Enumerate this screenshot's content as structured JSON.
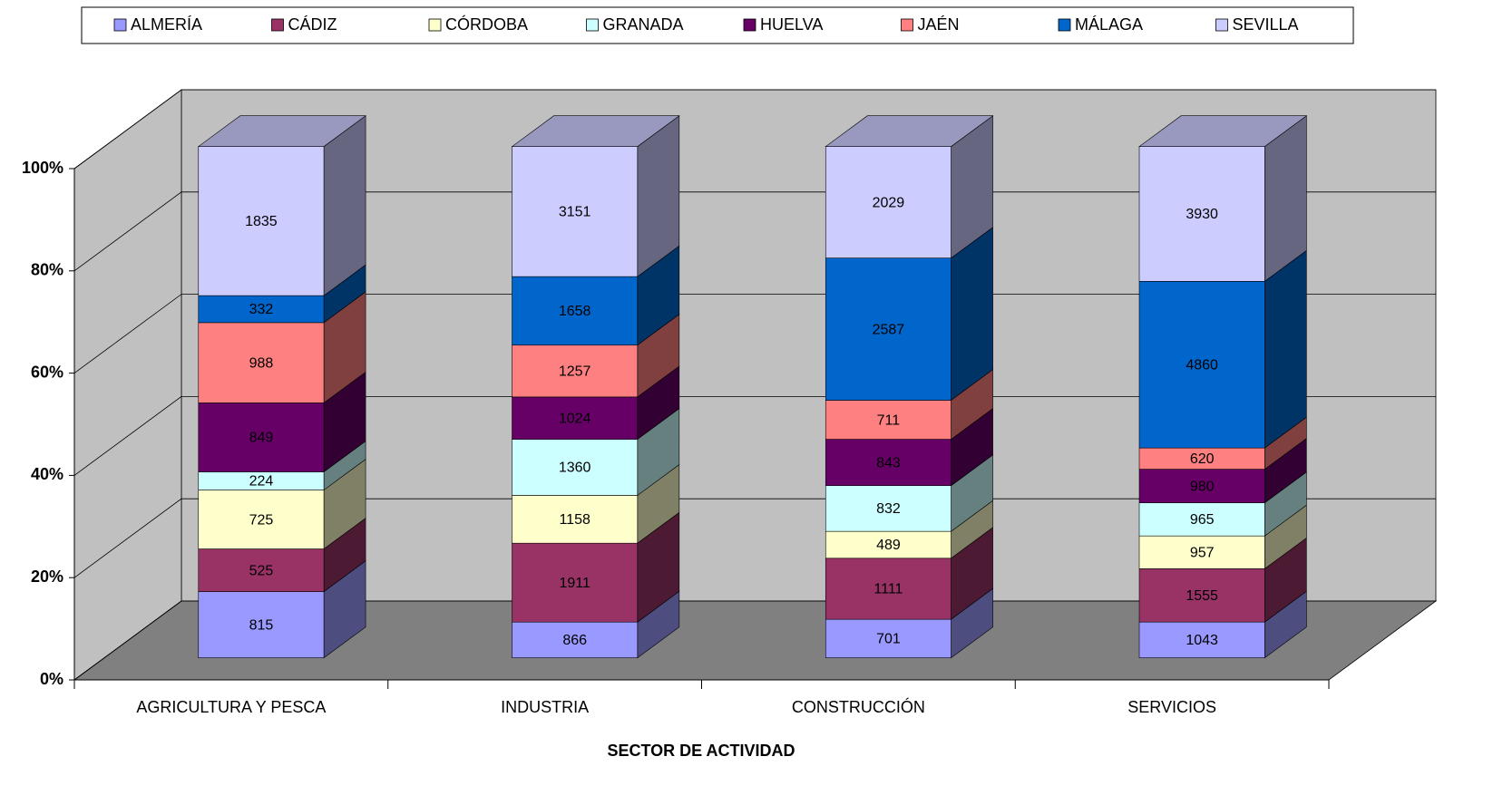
{
  "chart_data": {
    "type": "bar",
    "stacking": "percent",
    "x_label": "SECTOR DE ACTIVIDAD",
    "categories": [
      "AGRICULTURA Y PESCA",
      "INDUSTRIA",
      "CONSTRUCCIÓN",
      "SERVICIOS"
    ],
    "series": [
      {
        "name": "ALMERÍA",
        "color": "#9999ff",
        "values": [
          815,
          866,
          701,
          1043
        ]
      },
      {
        "name": "CÁDIZ",
        "color": "#993366",
        "values": [
          525,
          1911,
          1111,
          1555
        ]
      },
      {
        "name": "CÓRDOBA",
        "color": "#ffffcc",
        "values": [
          725,
          1158,
          489,
          957
        ]
      },
      {
        "name": "GRANADA",
        "color": "#ccffff",
        "values": [
          224,
          1360,
          832,
          965
        ]
      },
      {
        "name": "HUELVA",
        "color": "#660066",
        "values": [
          849,
          1024,
          843,
          980
        ]
      },
      {
        "name": "JAÉN",
        "color": "#ff8080",
        "values": [
          988,
          1257,
          711,
          620
        ]
      },
      {
        "name": "MÁLAGA",
        "color": "#0066cc",
        "values": [
          332,
          1658,
          2587,
          4860
        ]
      },
      {
        "name": "SEVILLA",
        "color": "#ccccff",
        "values": [
          1835,
          3151,
          2029,
          3930
        ]
      }
    ],
    "ylim": [
      0,
      100
    ],
    "yticks": [
      {
        "value": 0,
        "label": "0%"
      },
      {
        "value": 20,
        "label": "20%"
      },
      {
        "value": 40,
        "label": "40%"
      },
      {
        "value": 60,
        "label": "60%"
      },
      {
        "value": 80,
        "label": "80%"
      },
      {
        "value": 100,
        "label": "100%"
      }
    ],
    "grid": true,
    "legend": "top"
  }
}
